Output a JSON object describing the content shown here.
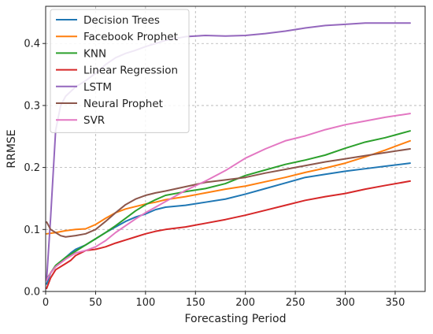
{
  "chart_data": {
    "type": "line",
    "title": "",
    "xlabel": "Forecasting Period",
    "ylabel": "RRMSE",
    "xlim": [
      0,
      380
    ],
    "ylim": [
      0,
      0.46
    ],
    "xticks": [
      0,
      50,
      100,
      150,
      200,
      250,
      300,
      350
    ],
    "yticks": [
      0.0,
      0.1,
      0.2,
      0.3,
      0.4
    ],
    "xtick_labels": [
      "0",
      "50",
      "100",
      "150",
      "200",
      "250",
      "300",
      "350"
    ],
    "ytick_labels": [
      "0.0",
      "0.1",
      "0.2",
      "0.3",
      "0.4"
    ],
    "grid": true,
    "legend_position": "top-left",
    "series": [
      {
        "name": "Decision Trees",
        "color": "#1f77b4",
        "points": [
          [
            1,
            0.012
          ],
          [
            5,
            0.03
          ],
          [
            10,
            0.04
          ],
          [
            15,
            0.048
          ],
          [
            20,
            0.055
          ],
          [
            25,
            0.062
          ],
          [
            30,
            0.068
          ],
          [
            40,
            0.075
          ],
          [
            50,
            0.085
          ],
          [
            60,
            0.095
          ],
          [
            70,
            0.104
          ],
          [
            80,
            0.113
          ],
          [
            90,
            0.12
          ],
          [
            100,
            0.125
          ],
          [
            110,
            0.132
          ],
          [
            120,
            0.136
          ],
          [
            140,
            0.139
          ],
          [
            160,
            0.144
          ],
          [
            180,
            0.149
          ],
          [
            200,
            0.157
          ],
          [
            220,
            0.166
          ],
          [
            240,
            0.175
          ],
          [
            260,
            0.184
          ],
          [
            280,
            0.189
          ],
          [
            300,
            0.194
          ],
          [
            320,
            0.198
          ],
          [
            340,
            0.202
          ],
          [
            365,
            0.207
          ]
        ]
      },
      {
        "name": "Facebook Prophet",
        "color": "#ff7f0e",
        "points": [
          [
            1,
            0.093
          ],
          [
            10,
            0.095
          ],
          [
            20,
            0.098
          ],
          [
            30,
            0.1
          ],
          [
            40,
            0.101
          ],
          [
            50,
            0.108
          ],
          [
            60,
            0.118
          ],
          [
            70,
            0.127
          ],
          [
            80,
            0.133
          ],
          [
            90,
            0.137
          ],
          [
            100,
            0.141
          ],
          [
            110,
            0.144
          ],
          [
            120,
            0.148
          ],
          [
            140,
            0.153
          ],
          [
            160,
            0.159
          ],
          [
            180,
            0.165
          ],
          [
            200,
            0.17
          ],
          [
            220,
            0.177
          ],
          [
            240,
            0.184
          ],
          [
            260,
            0.192
          ],
          [
            280,
            0.199
          ],
          [
            300,
            0.207
          ],
          [
            320,
            0.217
          ],
          [
            340,
            0.228
          ],
          [
            365,
            0.243
          ]
        ]
      },
      {
        "name": "KNN",
        "color": "#2ca02c",
        "points": [
          [
            1,
            0.02
          ],
          [
            5,
            0.03
          ],
          [
            10,
            0.042
          ],
          [
            20,
            0.055
          ],
          [
            30,
            0.065
          ],
          [
            40,
            0.075
          ],
          [
            50,
            0.085
          ],
          [
            60,
            0.095
          ],
          [
            70,
            0.106
          ],
          [
            80,
            0.118
          ],
          [
            90,
            0.13
          ],
          [
            100,
            0.14
          ],
          [
            110,
            0.148
          ],
          [
            120,
            0.155
          ],
          [
            140,
            0.161
          ],
          [
            160,
            0.166
          ],
          [
            180,
            0.174
          ],
          [
            200,
            0.187
          ],
          [
            220,
            0.196
          ],
          [
            240,
            0.205
          ],
          [
            260,
            0.212
          ],
          [
            280,
            0.22
          ],
          [
            300,
            0.231
          ],
          [
            320,
            0.241
          ],
          [
            340,
            0.248
          ],
          [
            365,
            0.259
          ]
        ]
      },
      {
        "name": "Linear Regression",
        "color": "#d62728",
        "points": [
          [
            1,
            0.005
          ],
          [
            5,
            0.022
          ],
          [
            10,
            0.035
          ],
          [
            15,
            0.04
          ],
          [
            20,
            0.045
          ],
          [
            25,
            0.05
          ],
          [
            30,
            0.058
          ],
          [
            40,
            0.066
          ],
          [
            50,
            0.068
          ],
          [
            60,
            0.072
          ],
          [
            70,
            0.078
          ],
          [
            80,
            0.083
          ],
          [
            90,
            0.088
          ],
          [
            100,
            0.093
          ],
          [
            110,
            0.097
          ],
          [
            120,
            0.1
          ],
          [
            140,
            0.104
          ],
          [
            160,
            0.11
          ],
          [
            180,
            0.116
          ],
          [
            200,
            0.123
          ],
          [
            220,
            0.131
          ],
          [
            240,
            0.139
          ],
          [
            260,
            0.147
          ],
          [
            280,
            0.153
          ],
          [
            300,
            0.158
          ],
          [
            320,
            0.165
          ],
          [
            340,
            0.171
          ],
          [
            365,
            0.178
          ]
        ]
      },
      {
        "name": "LSTM",
        "color": "#9467bd",
        "points": [
          [
            1,
            0.02
          ],
          [
            5,
            0.12
          ],
          [
            10,
            0.26
          ],
          [
            15,
            0.3
          ],
          [
            20,
            0.315
          ],
          [
            30,
            0.33
          ],
          [
            40,
            0.34
          ],
          [
            50,
            0.352
          ],
          [
            60,
            0.366
          ],
          [
            70,
            0.377
          ],
          [
            80,
            0.384
          ],
          [
            90,
            0.389
          ],
          [
            100,
            0.395
          ],
          [
            120,
            0.405
          ],
          [
            140,
            0.411
          ],
          [
            160,
            0.413
          ],
          [
            180,
            0.412
          ],
          [
            200,
            0.413
          ],
          [
            220,
            0.416
          ],
          [
            240,
            0.42
          ],
          [
            260,
            0.425
          ],
          [
            280,
            0.429
          ],
          [
            300,
            0.431
          ],
          [
            320,
            0.433
          ],
          [
            340,
            0.433
          ],
          [
            365,
            0.433
          ]
        ]
      },
      {
        "name": "Neural Prophet",
        "color": "#8c564b",
        "points": [
          [
            1,
            0.112
          ],
          [
            5,
            0.1
          ],
          [
            10,
            0.095
          ],
          [
            15,
            0.09
          ],
          [
            20,
            0.088
          ],
          [
            30,
            0.09
          ],
          [
            40,
            0.093
          ],
          [
            50,
            0.1
          ],
          [
            60,
            0.113
          ],
          [
            70,
            0.127
          ],
          [
            80,
            0.14
          ],
          [
            90,
            0.149
          ],
          [
            100,
            0.155
          ],
          [
            110,
            0.159
          ],
          [
            120,
            0.162
          ],
          [
            140,
            0.169
          ],
          [
            160,
            0.176
          ],
          [
            180,
            0.18
          ],
          [
            200,
            0.184
          ],
          [
            220,
            0.191
          ],
          [
            240,
            0.197
          ],
          [
            260,
            0.203
          ],
          [
            280,
            0.209
          ],
          [
            300,
            0.214
          ],
          [
            320,
            0.219
          ],
          [
            340,
            0.224
          ],
          [
            365,
            0.23
          ]
        ]
      },
      {
        "name": "SVR",
        "color": "#e377c2",
        "points": [
          [
            1,
            0.018
          ],
          [
            5,
            0.03
          ],
          [
            10,
            0.04
          ],
          [
            20,
            0.052
          ],
          [
            30,
            0.062
          ],
          [
            40,
            0.066
          ],
          [
            50,
            0.072
          ],
          [
            60,
            0.082
          ],
          [
            70,
            0.095
          ],
          [
            80,
            0.106
          ],
          [
            90,
            0.117
          ],
          [
            100,
            0.127
          ],
          [
            110,
            0.136
          ],
          [
            120,
            0.145
          ],
          [
            140,
            0.163
          ],
          [
            160,
            0.178
          ],
          [
            180,
            0.195
          ],
          [
            200,
            0.215
          ],
          [
            220,
            0.23
          ],
          [
            240,
            0.243
          ],
          [
            260,
            0.251
          ],
          [
            280,
            0.261
          ],
          [
            300,
            0.269
          ],
          [
            320,
            0.275
          ],
          [
            340,
            0.281
          ],
          [
            365,
            0.287
          ]
        ]
      }
    ]
  }
}
